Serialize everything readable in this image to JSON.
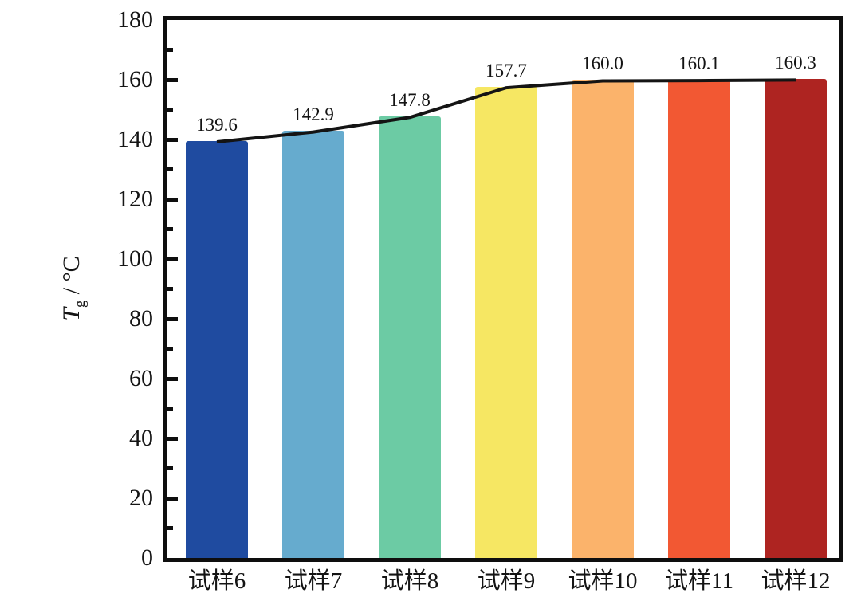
{
  "figure": {
    "background_color": "#ffffff",
    "axis_color": "#0e0e0e",
    "text_color": "#141414"
  },
  "chart_data": {
    "type": "bar",
    "title": "",
    "categories": [
      "试样6",
      "试样7",
      "试样8",
      "试样9",
      "试样10",
      "试样11",
      "试样12"
    ],
    "values": [
      139.6,
      142.9,
      147.8,
      157.7,
      160.0,
      160.1,
      160.3
    ],
    "value_labels": [
      "139.6",
      "142.9",
      "147.8",
      "157.7",
      "160.0",
      "160.1",
      "160.3"
    ],
    "bar_colors": [
      "#1f4ba0",
      "#66abce",
      "#6ccba4",
      "#f6e763",
      "#fbb36b",
      "#f25833",
      "#ae2421"
    ],
    "xlabel": "",
    "ylabel": {
      "variable": "T",
      "subscript": "g",
      "separator": " / ",
      "unit": "°C"
    },
    "ylim": [
      0,
      180
    ],
    "ytick_values": [
      0,
      20,
      40,
      60,
      80,
      100,
      120,
      140,
      160,
      180
    ],
    "ytick_labels": [
      "0",
      "20",
      "40",
      "60",
      "80",
      "100",
      "120",
      "140",
      "160",
      "180"
    ],
    "ytick_minor_values": [
      10,
      30,
      50,
      70,
      90,
      110,
      130,
      150,
      170
    ],
    "grid": false,
    "legend": "none",
    "line_overlay": {
      "type": "line",
      "connects": "bar-tops",
      "color": "#141414",
      "stroke_width": 4
    }
  }
}
